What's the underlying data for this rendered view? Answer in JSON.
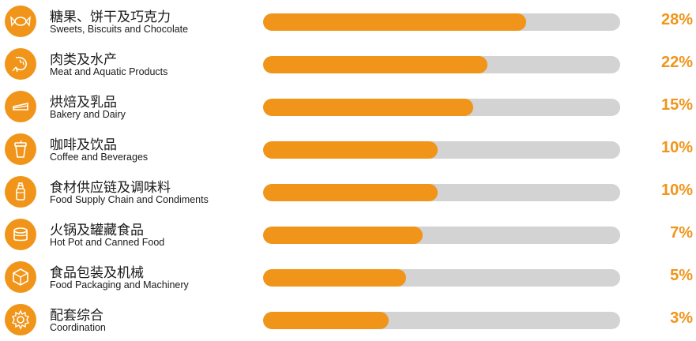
{
  "chart_data": {
    "type": "bar",
    "orientation": "horizontal",
    "accent_color": "#f0951a",
    "track_color": "#d3d3d3",
    "rows": [
      {
        "icon": "candy-icon",
        "label_zh": "糖果、饼干及巧克力",
        "label_en": "Sweets, Biscuits and Chocolate",
        "value": 28,
        "value_label": "28%"
      },
      {
        "icon": "shrimp-icon",
        "label_zh": "肉类及水产",
        "label_en": "Meat and Aquatic Products",
        "value": 22,
        "value_label": "22%"
      },
      {
        "icon": "cake-icon",
        "label_zh": "烘焙及乳品",
        "label_en": "Bakery and Dairy",
        "value": 15,
        "value_label": "15%"
      },
      {
        "icon": "cup-icon",
        "label_zh": "咖啡及饮品",
        "label_en": "Coffee and Beverages",
        "value": 10,
        "value_label": "10%"
      },
      {
        "icon": "bottle-icon",
        "label_zh": "食材供应链及调味料",
        "label_en": "Food Supply Chain and Condiments",
        "value": 10,
        "value_label": "10%"
      },
      {
        "icon": "can-icon",
        "label_zh": "火锅及罐藏食品",
        "label_en": "Hot Pot and Canned Food",
        "value": 7,
        "value_label": "7%"
      },
      {
        "icon": "box-icon",
        "label_zh": "食品包装及机械",
        "label_en": "Food Packaging and Machinery",
        "value": 5,
        "value_label": "5%"
      },
      {
        "icon": "gear-icon",
        "label_zh": "配套综合",
        "label_en": "Coordination",
        "value": 3,
        "value_label": "3%"
      }
    ]
  }
}
